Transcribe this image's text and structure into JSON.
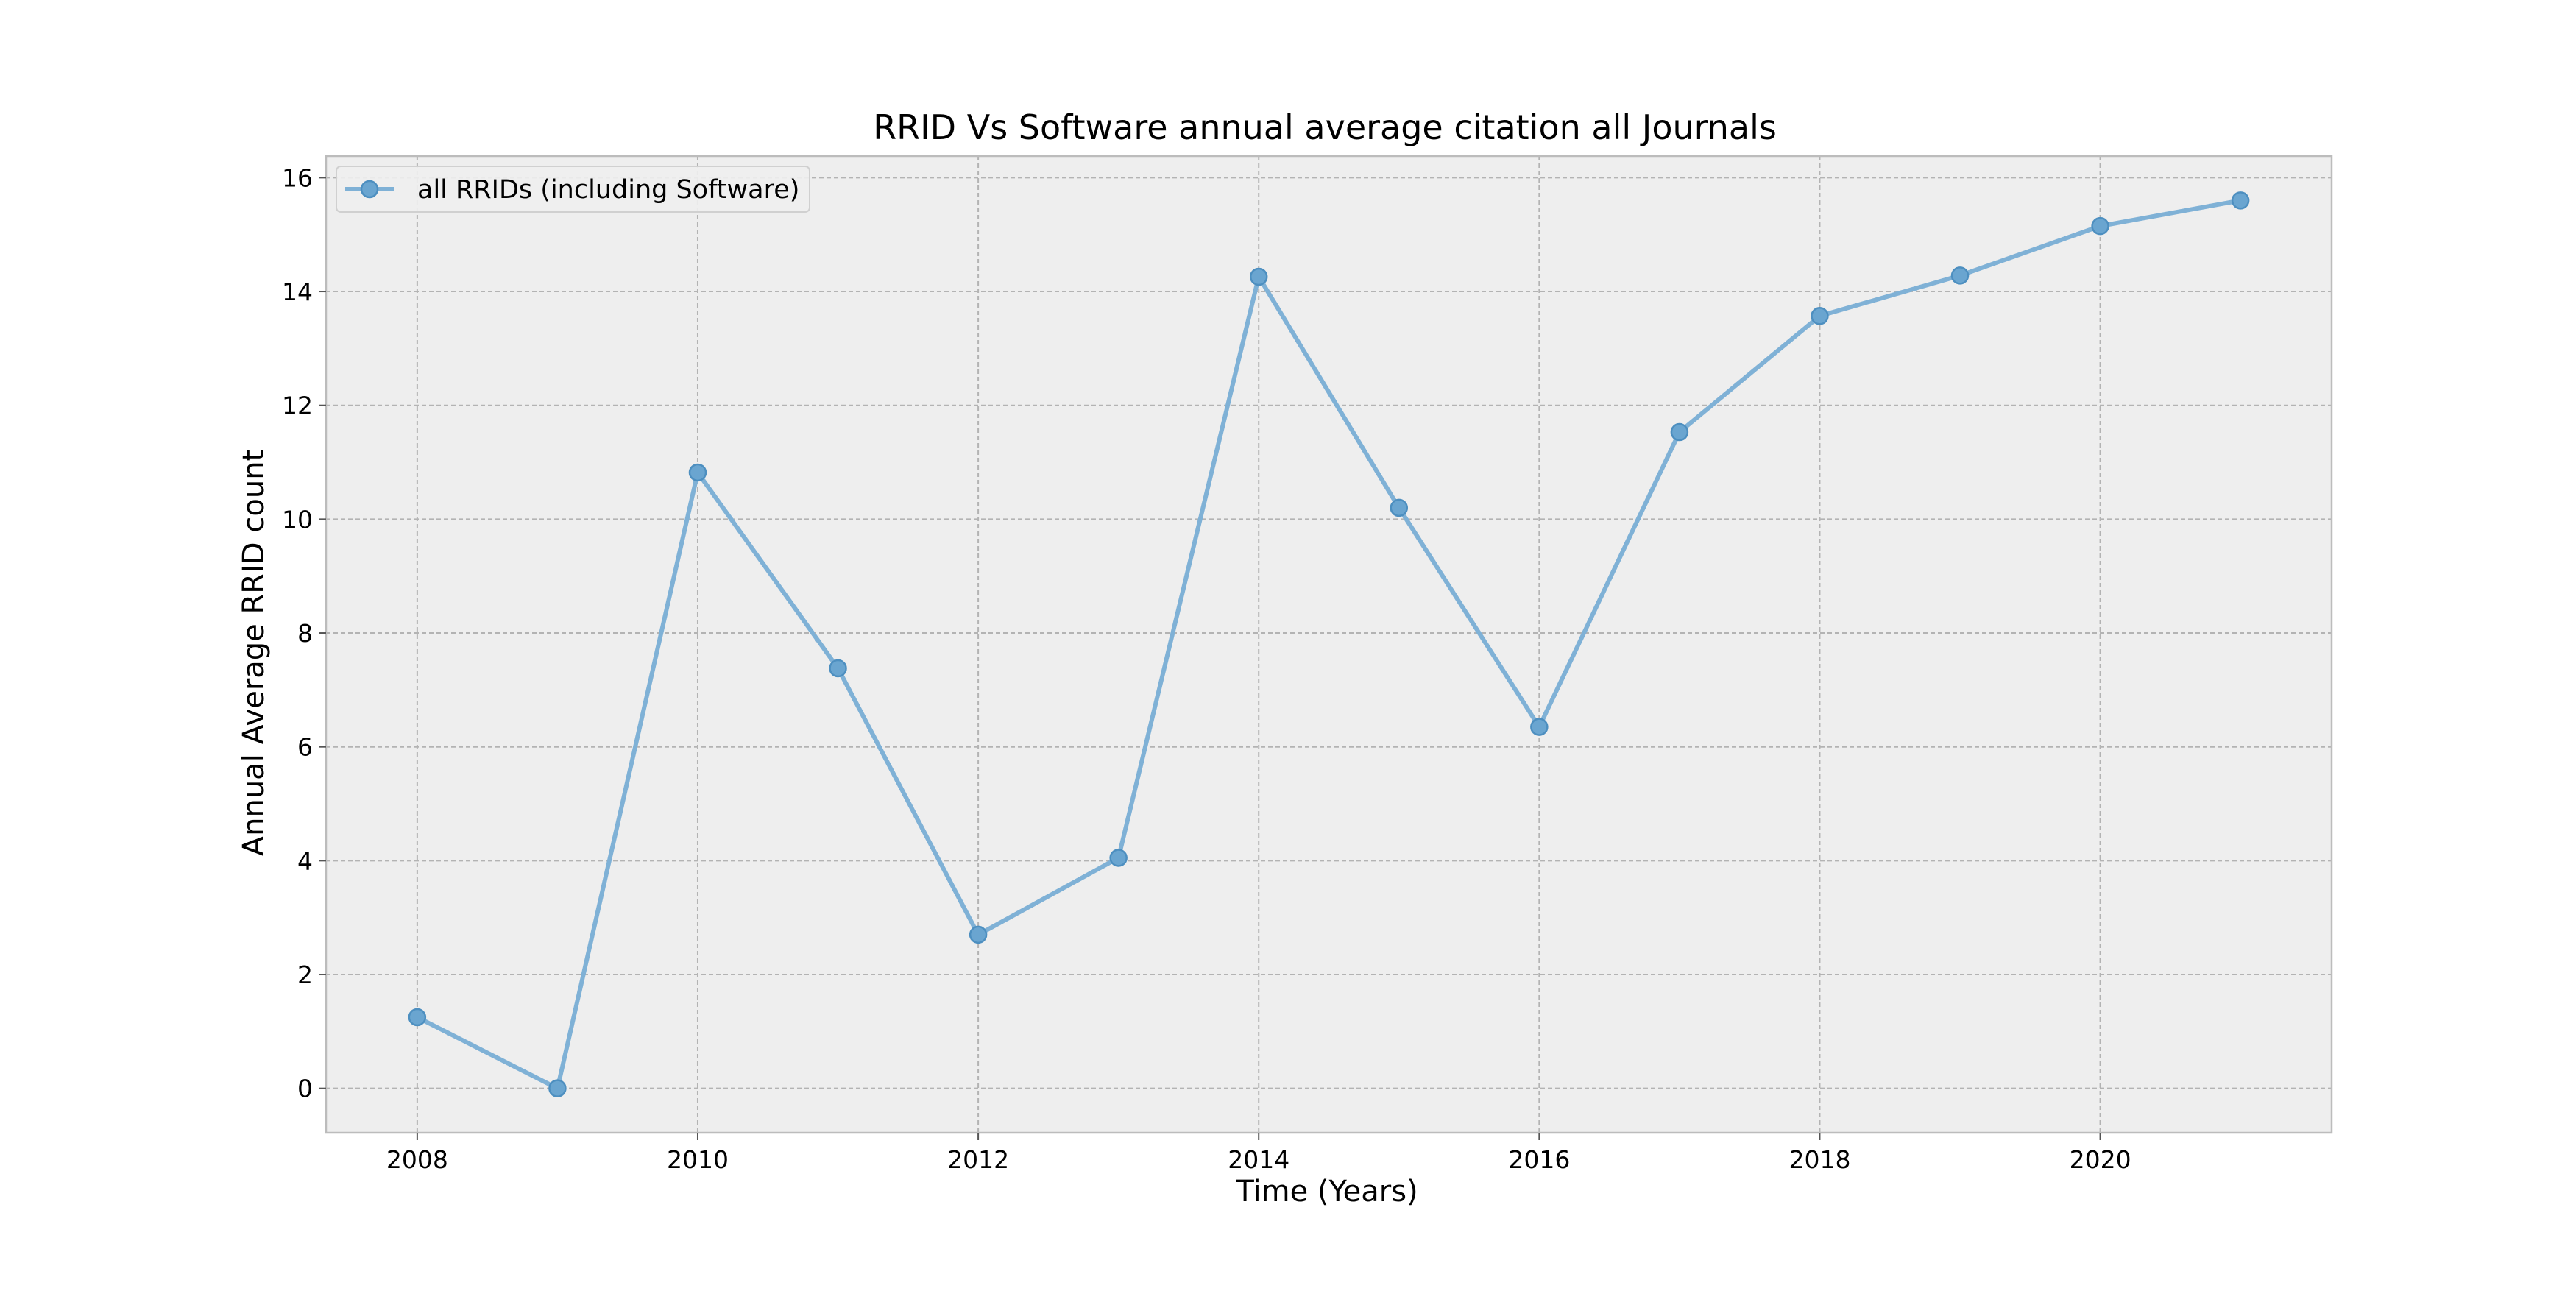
{
  "chart_data": {
    "type": "line",
    "title": "RRID Vs Software annual average citation all Journals",
    "xlabel": "Time (Years)",
    "ylabel": "Annual Average RRID count",
    "xlim": [
      2007.35,
      2021.65
    ],
    "ylim": [
      -0.78,
      16.38
    ],
    "xticks": [
      2008,
      2010,
      2012,
      2014,
      2016,
      2018,
      2020
    ],
    "yticks": [
      0,
      2,
      4,
      6,
      8,
      10,
      12,
      14,
      16
    ],
    "grid": true,
    "legend_position": "top-left",
    "series": [
      {
        "name": "all RRIDs (including Software)",
        "color": "#7fb1d6",
        "marker": "circle",
        "x": [
          2008,
          2009,
          2010,
          2011,
          2012,
          2013,
          2014,
          2015,
          2016,
          2017,
          2018,
          2019,
          2020,
          2021
        ],
        "y": [
          1.25,
          0.0,
          10.82,
          7.38,
          2.7,
          4.05,
          14.26,
          10.2,
          6.35,
          11.53,
          13.57,
          14.28,
          15.15,
          15.6
        ]
      }
    ]
  }
}
